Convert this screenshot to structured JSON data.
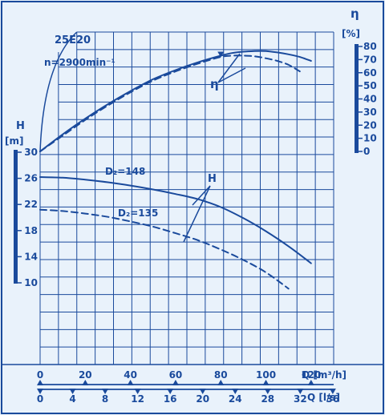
{
  "chart_data": {
    "type": "line",
    "title": "25E20",
    "subtitle": "n=2900min⁻¹",
    "colors": {
      "ink": "#1a4a9c",
      "paper": "#e9f2fb"
    },
    "grid": true,
    "x_axes": [
      {
        "label": "Q [m³/h]",
        "ticks": [
          "0",
          "20",
          "40",
          "60",
          "80",
          "100",
          "120"
        ],
        "range": [
          0,
          130
        ]
      },
      {
        "label": "Q [l/s]",
        "ticks": [
          "0",
          "4",
          "8",
          "12",
          "16",
          "20",
          "24",
          "28",
          "32",
          "36"
        ],
        "range": [
          0,
          36
        ]
      }
    ],
    "y_axes": [
      {
        "label": "H",
        "unit": "[m]",
        "ticks": [
          "10",
          "14",
          "18",
          "22",
          "26",
          "30"
        ],
        "range": [
          10,
          30
        ]
      },
      {
        "label": "η",
        "unit": "[%]",
        "ticks": [
          "0",
          "10",
          "20",
          "30",
          "40",
          "50",
          "60",
          "70",
          "80"
        ],
        "range": [
          0,
          80
        ]
      }
    ],
    "labels": {
      "eta": "η",
      "head": "H",
      "d148": "D₂=148",
      "d135": "D₂=135"
    },
    "series": [
      {
        "name": "D₂=148",
        "kind": "H",
        "style": "solid",
        "x": [
          0,
          10,
          20,
          30,
          40,
          50,
          60,
          70,
          80,
          90,
          100,
          110,
          120
        ],
        "y": [
          26.2,
          26.1,
          25.8,
          25.4,
          24.9,
          24.3,
          23.6,
          22.8,
          21.6,
          19.9,
          17.9,
          15.6,
          13.0
        ]
      },
      {
        "name": "D₂=135",
        "kind": "H",
        "style": "dashed",
        "x": [
          0,
          10,
          20,
          30,
          40,
          50,
          60,
          70,
          80,
          90,
          100,
          110
        ],
        "y": [
          21.2,
          21.0,
          20.6,
          20.1,
          19.4,
          18.6,
          17.6,
          16.5,
          15.1,
          13.5,
          11.6,
          9.1
        ]
      },
      {
        "name": "D₂=148",
        "kind": "η",
        "style": "solid",
        "x": [
          0,
          10,
          20,
          30,
          40,
          50,
          60,
          70,
          80,
          85,
          90,
          95,
          100,
          105,
          110,
          115,
          120
        ],
        "y": [
          0,
          13,
          25,
          36,
          46,
          55,
          62,
          68,
          73,
          75,
          76,
          76.5,
          76.5,
          75.5,
          74,
          72,
          69
        ]
      },
      {
        "name": "D₂=135",
        "kind": "η",
        "style": "dashed",
        "x": [
          0,
          10,
          20,
          30,
          40,
          50,
          60,
          70,
          80,
          85,
          90,
          95,
          100,
          105,
          110,
          115
        ],
        "y": [
          0,
          12,
          24,
          35,
          45,
          54,
          61,
          67,
          72,
          73,
          73,
          72.5,
          71,
          69,
          66,
          61
        ]
      }
    ]
  }
}
